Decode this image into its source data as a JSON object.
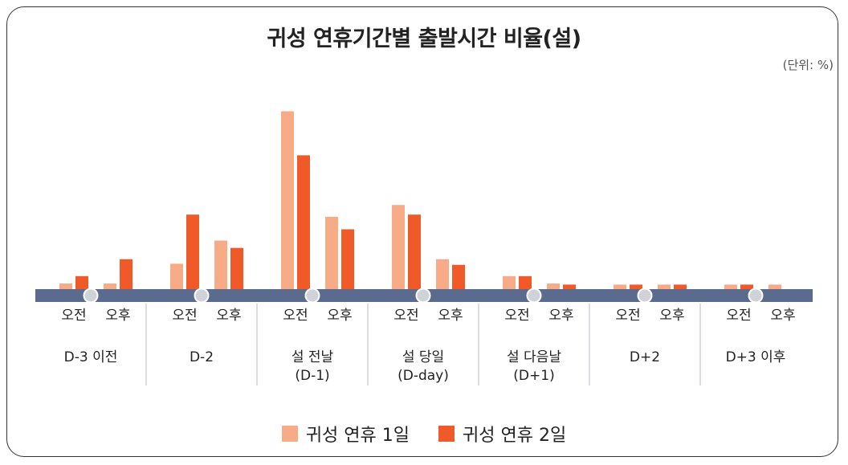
{
  "colors": {
    "series1": "#f7ab87",
    "series2": "#f05a28",
    "axis_band": "#5a6b8e",
    "marker": "#cfd2d8"
  },
  "chart_data": {
    "type": "bar",
    "title": "귀성 연휴기간별 출발시간 비율(설)",
    "unit_label": "(단위: %)",
    "groups": [
      {
        "label": [
          "D-3 이전"
        ],
        "sub": [
          "오전",
          "오후"
        ]
      },
      {
        "label": [
          "D-2"
        ],
        "sub": [
          "오전",
          "오후"
        ]
      },
      {
        "label": [
          "설 전날",
          "(D-1)"
        ],
        "sub": [
          "오전",
          "오후"
        ]
      },
      {
        "label": [
          "설 당일",
          "(D-day)"
        ],
        "sub": [
          "오전",
          "오후"
        ]
      },
      {
        "label": [
          "설 다음날",
          "(D+1)"
        ],
        "sub": [
          "오전",
          "오후"
        ]
      },
      {
        "label": [
          "D+2"
        ],
        "sub": [
          "오전",
          "오후"
        ]
      },
      {
        "label": [
          "D+3 이후"
        ],
        "sub": [
          "오전",
          "오후"
        ]
      }
    ],
    "series": [
      {
        "name": "귀성 연휴 1일",
        "values": [
          1.0,
          1.0,
          4.5,
          8.6,
          31.5,
          12.8,
          14.9,
          5.3,
          2.3,
          1.0,
          0.8,
          0.8,
          0.8,
          0.8
        ]
      },
      {
        "name": "귀성 연휴 2일",
        "values": [
          2.3,
          5.3,
          13.2,
          7.3,
          23.7,
          10.6,
          13.2,
          4.3,
          2.3,
          0.8,
          0.8,
          0.8,
          0.8,
          0
        ]
      }
    ],
    "ylim": [
      0,
      33
    ]
  }
}
